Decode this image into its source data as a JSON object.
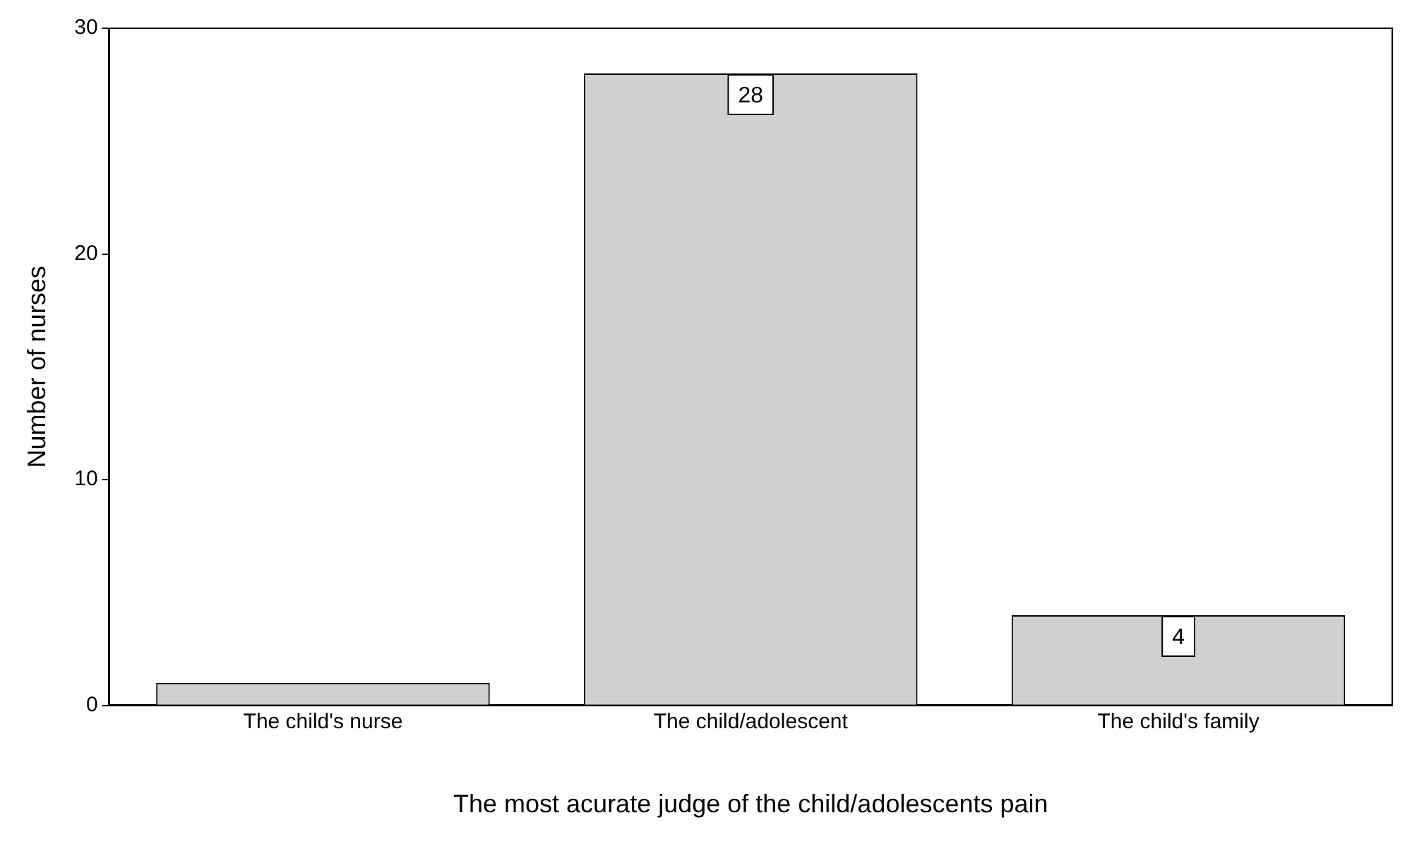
{
  "chart_data": {
    "type": "bar",
    "xlabel": "The most acurate judge of the child/adolescents pain",
    "ylabel": "Number of nurses",
    "categories": [
      "The child's nurse",
      "The child/adolescent",
      "The child's family"
    ],
    "values": [
      1,
      28,
      4
    ],
    "value_labels": [
      null,
      "28",
      "4"
    ],
    "color": "#d0d0d0",
    "ylim": [
      0,
      30
    ],
    "yticks": [
      0,
      10,
      20,
      30
    ],
    "grid": false,
    "legend": false
  }
}
